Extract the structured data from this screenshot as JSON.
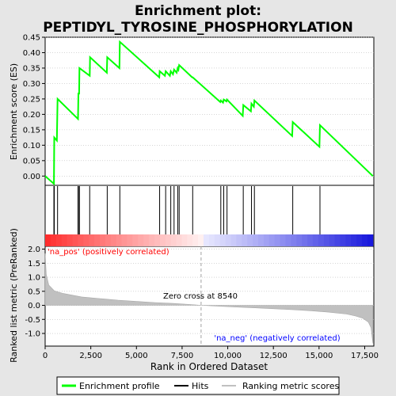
{
  "title_line1": "Enrichment plot:",
  "title_line2": "PEPTIDYL_TYROSINE_PHOSPHORYLATION",
  "colors": {
    "background": "#e6e6e6",
    "enrichment_line": "#00ff00",
    "hits": "#000000",
    "metric_fill": "#c0c0c0",
    "grid": "#bdbdbd",
    "pos_label": "#ff0000",
    "neg_label": "#0000ff",
    "zero_cross_line": "#a0a0a0"
  },
  "chart_data": {
    "type": "gsea",
    "x_range": [
      0,
      18000
    ],
    "x_ticks": [
      "0",
      "2,500",
      "5,000",
      "7,500",
      "10,000",
      "12,500",
      "15,000",
      "17,500"
    ],
    "x_tick_values": [
      0,
      2500,
      5000,
      7500,
      10000,
      12500,
      15000,
      17500
    ],
    "xlabel": "Rank in Ordered Dataset",
    "es_panel": {
      "ylabel": "Enrichment score (ES)",
      "ylim": [
        -0.03,
        0.45
      ],
      "y_ticks": [
        "0.45",
        "0.40",
        "0.35",
        "0.30",
        "0.25",
        "0.20",
        "0.15",
        "0.10",
        "0.05",
        "0.00"
      ],
      "y_tick_values": [
        0.45,
        0.4,
        0.35,
        0.3,
        0.25,
        0.2,
        0.15,
        0.1,
        0.05,
        0.0
      ],
      "curve": [
        [
          0,
          0.0
        ],
        [
          480,
          -0.025
        ],
        [
          500,
          0.125
        ],
        [
          640,
          0.115
        ],
        [
          680,
          0.25
        ],
        [
          1800,
          0.185
        ],
        [
          1820,
          0.27
        ],
        [
          1860,
          0.265
        ],
        [
          1880,
          0.35
        ],
        [
          2440,
          0.325
        ],
        [
          2460,
          0.385
        ],
        [
          3380,
          0.335
        ],
        [
          3400,
          0.385
        ],
        [
          4070,
          0.35
        ],
        [
          4090,
          0.435
        ],
        [
          6250,
          0.32
        ],
        [
          6270,
          0.34
        ],
        [
          6560,
          0.325
        ],
        [
          6600,
          0.34
        ],
        [
          6830,
          0.325
        ],
        [
          6880,
          0.34
        ],
        [
          7000,
          0.33
        ],
        [
          7060,
          0.345
        ],
        [
          7200,
          0.335
        ],
        [
          7260,
          0.35
        ],
        [
          7300,
          0.345
        ],
        [
          7340,
          0.36
        ],
        [
          8050,
          0.32
        ],
        [
          8080,
          0.32
        ],
        [
          9590,
          0.24
        ],
        [
          9620,
          0.245
        ],
        [
          9740,
          0.238
        ],
        [
          9780,
          0.248
        ],
        [
          9930,
          0.242
        ],
        [
          9960,
          0.248
        ],
        [
          10820,
          0.195
        ],
        [
          10850,
          0.23
        ],
        [
          11270,
          0.21
        ],
        [
          11300,
          0.235
        ],
        [
          11430,
          0.225
        ],
        [
          11460,
          0.245
        ],
        [
          13530,
          0.13
        ],
        [
          13560,
          0.175
        ],
        [
          15020,
          0.095
        ],
        [
          15050,
          0.165
        ],
        [
          17950,
          0.0
        ]
      ]
    },
    "hits_panel": {
      "hit_positions": [
        480,
        500,
        680,
        1800,
        1820,
        1880,
        2440,
        3400,
        4090,
        6270,
        6600,
        6880,
        7060,
        7260,
        7340,
        8080,
        9620,
        9780,
        9960,
        10850,
        11300,
        11460,
        13560,
        15050
      ]
    },
    "metric_panel": {
      "ylabel": "Ranked list metric (PreRanked)",
      "ylim": [
        -1.45,
        2.1
      ],
      "y_ticks": [
        "2.0",
        "1.5",
        "1.0",
        "0.5",
        "0.0",
        "-0.5",
        "-1.0"
      ],
      "y_tick_values": [
        2.0,
        1.5,
        1.0,
        0.5,
        0.0,
        -0.5,
        -1.0
      ],
      "metric_curve": [
        [
          0,
          1.85
        ],
        [
          60,
          1.1
        ],
        [
          200,
          0.72
        ],
        [
          500,
          0.52
        ],
        [
          1000,
          0.42
        ],
        [
          2000,
          0.3
        ],
        [
          3000,
          0.24
        ],
        [
          4000,
          0.18
        ],
        [
          5000,
          0.14
        ],
        [
          6000,
          0.1
        ],
        [
          7000,
          0.07
        ],
        [
          8000,
          0.03
        ],
        [
          8540,
          0.0
        ],
        [
          9500,
          -0.03
        ],
        [
          10500,
          -0.06
        ],
        [
          11500,
          -0.09
        ],
        [
          12500,
          -0.12
        ],
        [
          13500,
          -0.15
        ],
        [
          14500,
          -0.19
        ],
        [
          15500,
          -0.24
        ],
        [
          16500,
          -0.31
        ],
        [
          17000,
          -0.38
        ],
        [
          17400,
          -0.46
        ],
        [
          17700,
          -0.6
        ],
        [
          17850,
          -0.8
        ],
        [
          17950,
          -1.35
        ]
      ],
      "pos_label": "'na_pos' (positively correlated)",
      "neg_label": "'na_neg' (negatively correlated)",
      "zero_cross_label": "Zero cross at 8540",
      "zero_cross": 8540
    },
    "legend": [
      {
        "label": "Enrichment profile",
        "key": "enrichment"
      },
      {
        "label": "Hits",
        "key": "hits"
      },
      {
        "label": "Ranking metric scores",
        "key": "metric"
      }
    ]
  }
}
